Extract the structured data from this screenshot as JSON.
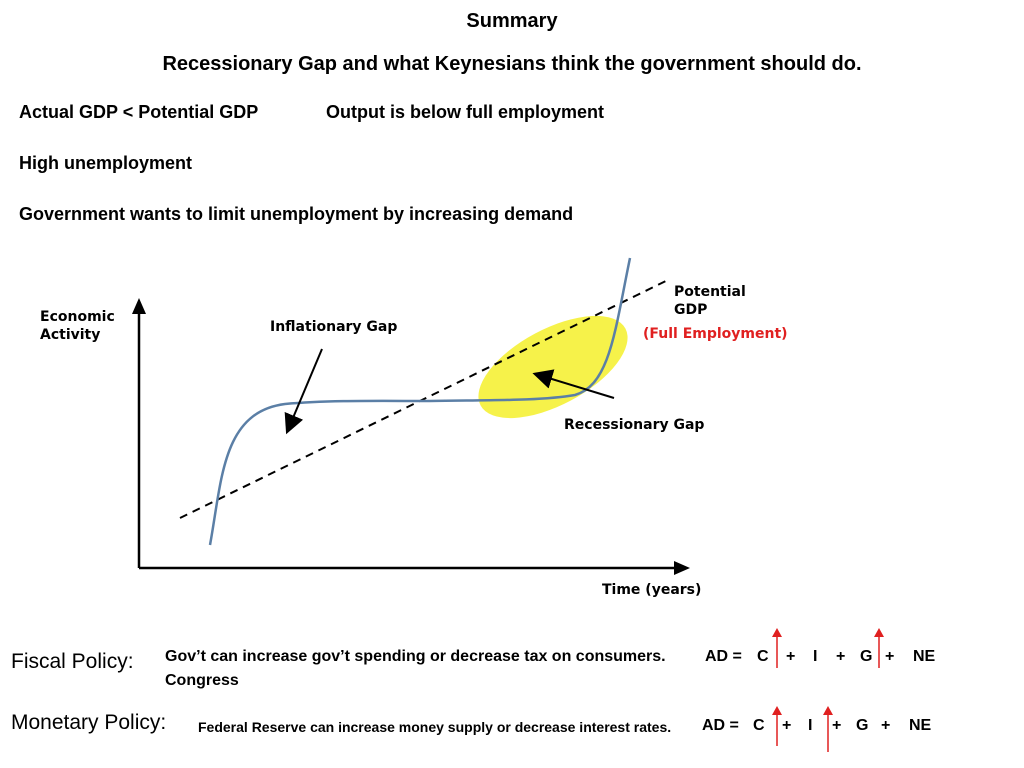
{
  "title": "Summary",
  "subtitle": "Recessionary Gap and what Keynesians think the government should do.",
  "lines": {
    "actual_gdp": "Actual GDP < Potential GDP",
    "output_below": "Output is below full employment",
    "high_unemployment": "High unemployment",
    "gov_wants": "Government wants to limit unemployment by increasing demand"
  },
  "diagram": {
    "y_label_line1": "Economic",
    "y_label_line2": "Activity",
    "x_label": "Time (years)",
    "inflationary_gap": "Inflationary Gap",
    "potential_gdp_line1": "Potential",
    "potential_gdp_line2": "GDP",
    "full_employment": "(Full Employment)",
    "recessionary_gap": "Recessionary Gap",
    "colors": {
      "curve": "#5b7fa6",
      "highlight": "#f4f02a",
      "full_employment": "#e02020"
    }
  },
  "fiscal": {
    "label": "Fiscal Policy:",
    "text": "Gov’t can increase gov’t spending or decrease tax on consumers.",
    "who": "Congress",
    "eq": {
      "ad": "AD =",
      "c": "C",
      "plus": "+",
      "i": "I",
      "g": "G",
      "ne": "NE"
    }
  },
  "monetary": {
    "label": "Monetary Policy:",
    "text": "Federal Reserve can increase money supply or decrease interest rates.",
    "eq": {
      "ad": "AD =",
      "c": "C",
      "plus": "+",
      "i": "I",
      "g": "G",
      "ne": "NE"
    }
  },
  "arrow_color": "#e02020"
}
